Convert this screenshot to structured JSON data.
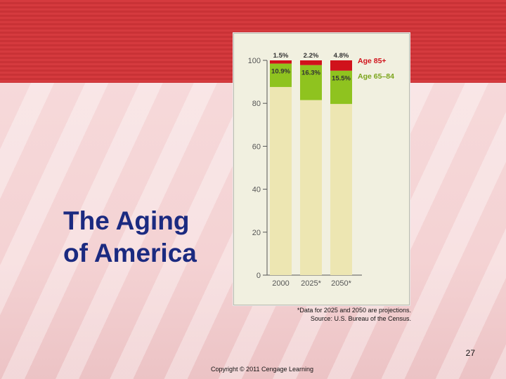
{
  "slide": {
    "title": "The Aging\nof America",
    "footnote_line1": "*Data for 2025 and 2050 are projections.",
    "footnote_line2": "Source: U.S. Bureau of the Census.",
    "page_number": "27",
    "copyright": "Copyright © 2011 Cengage Learning"
  },
  "colors": {
    "title": "#1b2a80",
    "banner": "#d53a3e",
    "age85": "#d0121b",
    "age65": "#8fc31f",
    "under65": "#ede6b2"
  },
  "chart_data": {
    "type": "bar",
    "stacked": true,
    "categories": [
      "2000",
      "2025*",
      "2050*"
    ],
    "series": [
      {
        "name": "Age 65–84",
        "values": [
          10.9,
          16.3,
          15.5
        ],
        "labels": [
          "10.9%",
          "16.3%",
          "15.5%"
        ]
      },
      {
        "name": "Age 85+",
        "values": [
          1.5,
          2.2,
          4.8
        ],
        "labels": [
          "1.5%",
          "2.2%",
          "4.8%"
        ]
      }
    ],
    "ylim": [
      0,
      100
    ],
    "yticks": [
      0,
      20,
      40,
      60,
      80,
      100
    ],
    "title": "",
    "xlabel": "",
    "ylabel": "",
    "legend": "right"
  }
}
